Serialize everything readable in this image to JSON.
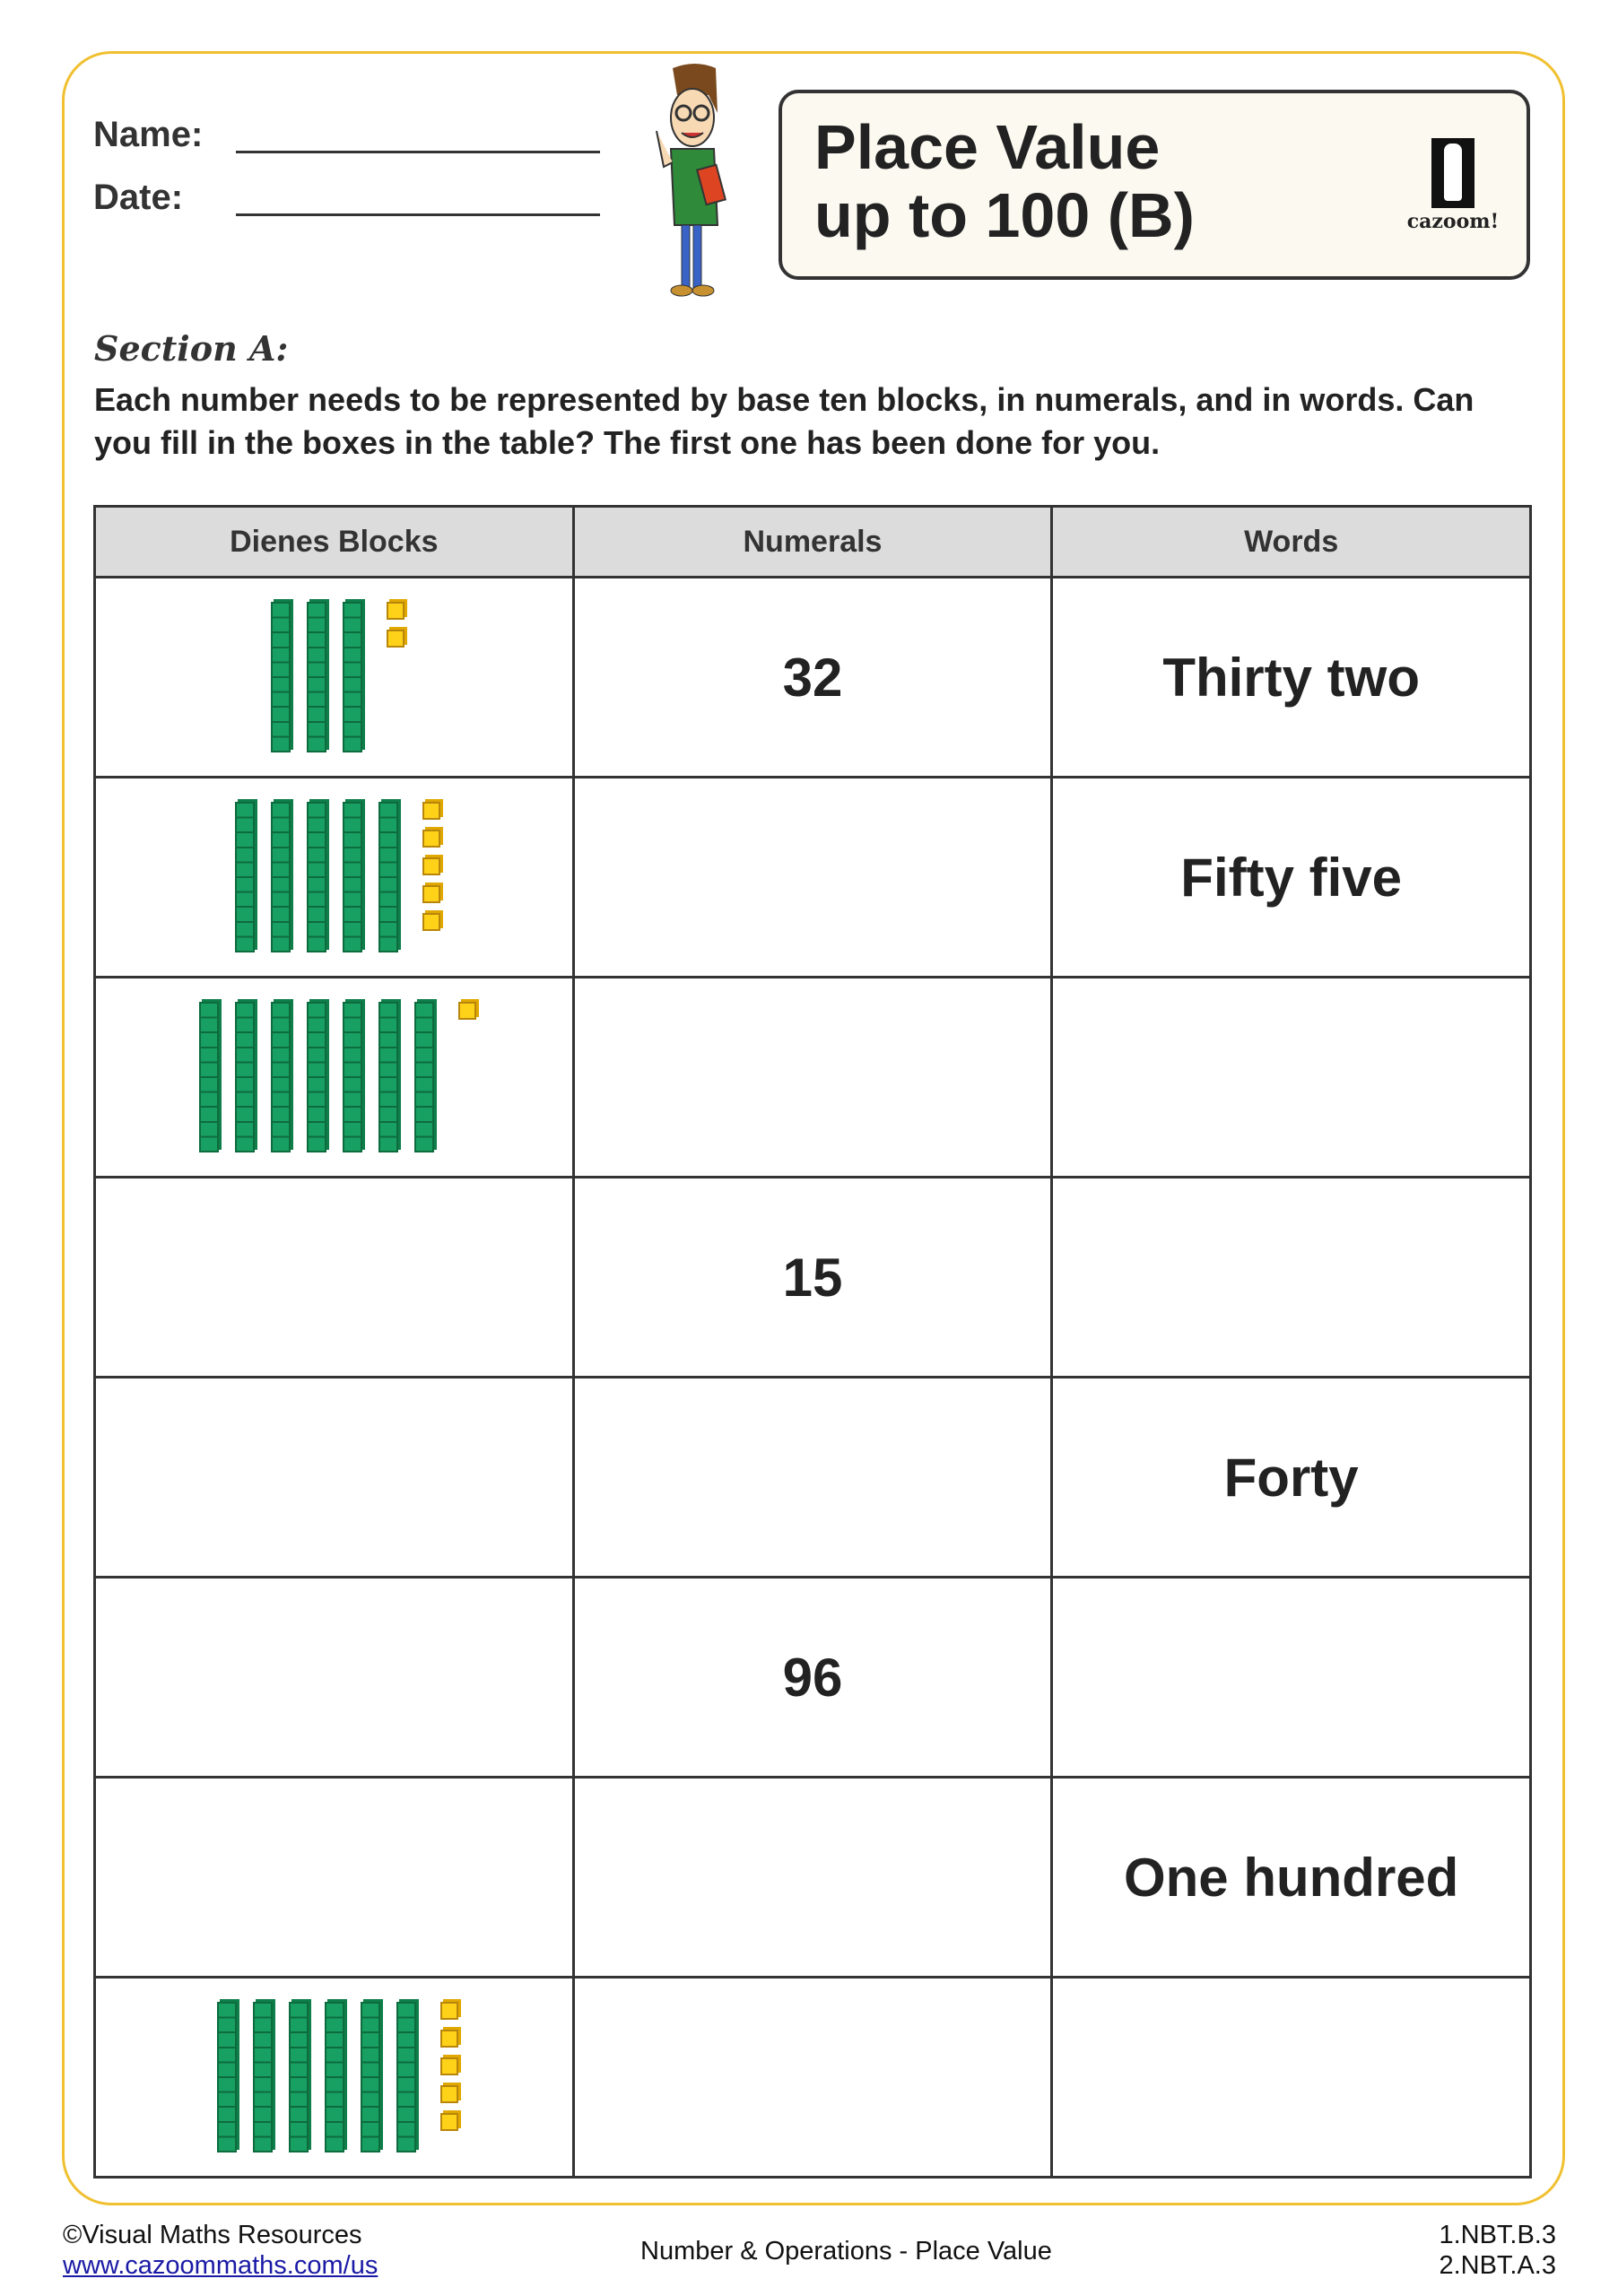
{
  "header": {
    "name_label": "Name:",
    "date_label": "Date:",
    "title_line1": "Place Value",
    "title_line2": "up to 100 (B)",
    "logo_text": "cazoom!"
  },
  "section": {
    "heading": "Section A:",
    "instructions": "Each number needs to be represented by base ten blocks, in numerals, and in words. Can you fill in the boxes in the table? The first one has been done for you."
  },
  "table": {
    "columns": [
      "Dienes Blocks",
      "Numerals",
      "Words"
    ],
    "rows": [
      {
        "tens": 3,
        "ones": 2,
        "numeral": "32",
        "words": "Thirty two"
      },
      {
        "tens": 5,
        "ones": 5,
        "numeral": "",
        "words": "Fifty five"
      },
      {
        "tens": 7,
        "ones": 1,
        "numeral": "",
        "words": ""
      },
      {
        "tens": 0,
        "ones": 0,
        "numeral": "15",
        "words": ""
      },
      {
        "tens": 0,
        "ones": 0,
        "numeral": "",
        "words": "Forty"
      },
      {
        "tens": 0,
        "ones": 0,
        "numeral": "96",
        "words": ""
      },
      {
        "tens": 0,
        "ones": 0,
        "numeral": "",
        "words": "One hundred"
      },
      {
        "tens": 6,
        "ones": 5,
        "numeral": "",
        "words": ""
      }
    ]
  },
  "footer": {
    "copyright": "©Visual Maths Resources",
    "link": "www.cazoommaths.com/us",
    "topic": "Number & Operations - Place Value",
    "standard1": "1.NBT.B.3",
    "standard2": "2.NBT.A.3"
  },
  "colors": {
    "frame": "#f0c030",
    "tens_rod": "#17a062",
    "ones_cube": "#ffd21a"
  }
}
